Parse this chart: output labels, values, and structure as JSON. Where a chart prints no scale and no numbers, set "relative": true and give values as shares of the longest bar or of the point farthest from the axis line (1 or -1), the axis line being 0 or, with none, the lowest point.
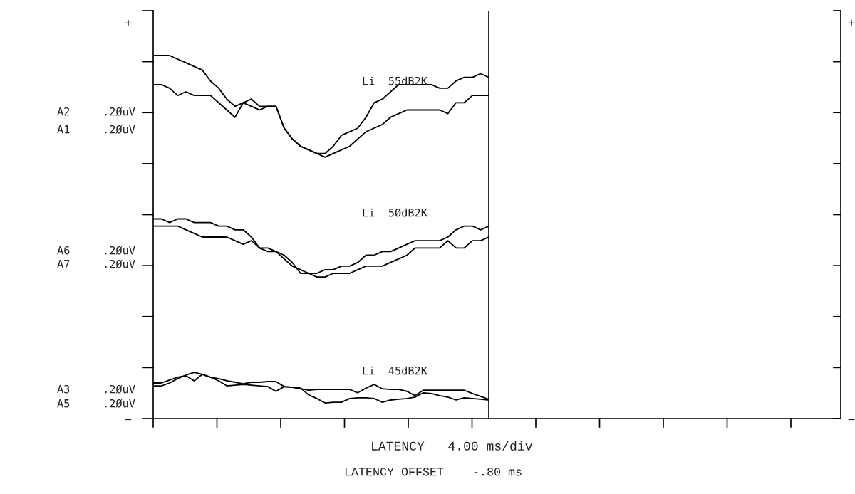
{
  "chart_data": {
    "type": "line",
    "relative": true,
    "legend": false,
    "marker": "none",
    "line_style": "solid",
    "categories": [
      null,
      null,
      null,
      null,
      null,
      null,
      null,
      null,
      null,
      null,
      null,
      null,
      null,
      null,
      null,
      null,
      null,
      null,
      null,
      null,
      null,
      null,
      null,
      null,
      null,
      null,
      null,
      null,
      null,
      null,
      null,
      null,
      null,
      null,
      null,
      null,
      null,
      null,
      null,
      null,
      null,
      null,
      null,
      null,
      null,
      null,
      null,
      null,
      null,
      null,
      null,
      null,
      null,
      null,
      null,
      null,
      null,
      null,
      null,
      null,
      null,
      null,
      null,
      null,
      null,
      null,
      null,
      null,
      null,
      null,
      null,
      null,
      null,
      null,
      null,
      null,
      null,
      null,
      null,
      null,
      null,
      null,
      null,
      null,
      null
    ],
    "series": [
      {
        "color": "#000000",
        "values": [
          1.0,
          1.0,
          1.0,
          0.99,
          0.98,
          0.97,
          0.96,
          0.93,
          0.91,
          0.88,
          0.86,
          0.87,
          0.88,
          0.86,
          0.86,
          0.86,
          0.8,
          0.77,
          0.75,
          0.74,
          0.73,
          0.73,
          0.75,
          0.78,
          0.79,
          0.8,
          0.83,
          0.87,
          0.88,
          0.9,
          0.92,
          0.92,
          0.92,
          0.92,
          0.92,
          0.91,
          0.91,
          0.93,
          0.94,
          0.94,
          0.95,
          0.94,
          null,
          null,
          null,
          null,
          null,
          null,
          null,
          null,
          null,
          null,
          null,
          null,
          null,
          null,
          null,
          null,
          null,
          null,
          null,
          null,
          null,
          null,
          null,
          null,
          null,
          null,
          null,
          null,
          null,
          null,
          null,
          null,
          null,
          null,
          null,
          null,
          null,
          null,
          null,
          null,
          null,
          null,
          null
        ]
      },
      {
        "color": "#000000",
        "values": [
          0.92,
          0.92,
          0.91,
          0.89,
          0.9,
          0.89,
          0.89,
          0.89,
          0.87,
          0.85,
          0.83,
          0.87,
          0.86,
          0.85,
          0.86,
          0.86,
          0.8,
          0.77,
          0.75,
          0.74,
          0.73,
          0.72,
          0.73,
          0.74,
          0.75,
          0.77,
          0.79,
          0.8,
          0.81,
          0.83,
          0.84,
          0.85,
          0.85,
          0.85,
          0.85,
          0.85,
          0.84,
          0.87,
          0.87,
          0.89,
          0.89,
          0.89,
          null,
          null,
          null,
          null,
          null,
          null,
          null,
          null,
          null,
          null,
          null,
          null,
          null,
          null,
          null,
          null,
          null,
          null,
          null,
          null,
          null,
          null,
          null,
          null,
          null,
          null,
          null,
          null,
          null,
          null,
          null,
          null,
          null,
          null,
          null,
          null,
          null,
          null,
          null,
          null,
          null,
          null,
          null
        ]
      },
      {
        "color": "#000000",
        "values": [
          0.55,
          0.55,
          0.54,
          0.55,
          0.55,
          0.54,
          0.54,
          0.54,
          0.53,
          0.53,
          0.52,
          0.52,
          0.5,
          0.47,
          0.46,
          0.46,
          0.44,
          0.42,
          0.41,
          0.4,
          0.4,
          0.41,
          0.41,
          0.42,
          0.42,
          0.43,
          0.45,
          0.45,
          0.46,
          0.46,
          0.47,
          0.48,
          0.49,
          0.49,
          0.49,
          0.49,
          0.5,
          0.52,
          0.53,
          0.53,
          0.52,
          0.53,
          null,
          null,
          null,
          null,
          null,
          null,
          null,
          null,
          null,
          null,
          null,
          null,
          null,
          null,
          null,
          null,
          null,
          null,
          null,
          null,
          null,
          null,
          null,
          null,
          null,
          null,
          null,
          null,
          null,
          null,
          null,
          null,
          null,
          null,
          null,
          null,
          null,
          null,
          null,
          null,
          null,
          null,
          null
        ]
      },
      {
        "color": "#000000",
        "values": [
          0.53,
          0.53,
          0.53,
          0.53,
          0.52,
          0.51,
          0.5,
          0.5,
          0.5,
          0.5,
          0.49,
          0.48,
          0.49,
          0.47,
          0.47,
          0.46,
          0.45,
          0.43,
          0.4,
          0.4,
          0.39,
          0.39,
          0.4,
          0.4,
          0.4,
          0.41,
          0.42,
          0.42,
          0.42,
          0.43,
          0.44,
          0.45,
          0.47,
          0.47,
          0.47,
          0.47,
          0.49,
          0.47,
          0.47,
          0.49,
          0.49,
          0.5,
          null,
          null,
          null,
          null,
          null,
          null,
          null,
          null,
          null,
          null,
          null,
          null,
          null,
          null,
          null,
          null,
          null,
          null,
          null,
          null,
          null,
          null,
          null,
          null,
          null,
          null,
          null,
          null,
          null,
          null,
          null,
          null,
          null,
          null,
          null,
          null,
          null,
          null,
          null,
          null,
          null,
          null,
          null
        ]
      },
      {
        "color": "#000000",
        "values": [
          0.098,
          0.098,
          0.106,
          0.114,
          0.118,
          0.104,
          0.122,
          0.114,
          0.11,
          0.104,
          0.1,
          0.096,
          0.1,
          0.1,
          0.102,
          0.102,
          0.088,
          0.086,
          0.082,
          0.078,
          0.08,
          0.08,
          0.08,
          0.08,
          0.08,
          0.071,
          0.084,
          0.094,
          0.082,
          0.08,
          0.08,
          0.075,
          0.063,
          0.078,
          0.078,
          0.078,
          0.078,
          0.078,
          0.078,
          0.069,
          0.061,
          0.053,
          null,
          null,
          null,
          null,
          null,
          null,
          null,
          null,
          null,
          null,
          null,
          null,
          null,
          null,
          null,
          null,
          null,
          null,
          null,
          null,
          null,
          null,
          null,
          null,
          null,
          null,
          null,
          null,
          null,
          null,
          null,
          null,
          null,
          null,
          null,
          null,
          null,
          null,
          null,
          null,
          null,
          null,
          null
        ]
      },
      {
        "color": "#000000",
        "values": [
          0.09,
          0.09,
          0.098,
          0.11,
          0.12,
          0.127,
          0.122,
          0.114,
          0.104,
          0.09,
          0.092,
          0.094,
          0.092,
          0.09,
          0.088,
          0.075,
          0.088,
          0.086,
          0.084,
          0.065,
          0.055,
          0.043,
          0.045,
          0.045,
          0.055,
          0.057,
          0.057,
          0.055,
          0.045,
          0.051,
          0.053,
          0.055,
          0.059,
          0.071,
          0.069,
          0.063,
          0.059,
          0.051,
          0.057,
          0.055,
          0.053,
          0.051,
          null,
          null,
          null,
          null,
          null,
          null,
          null,
          null,
          null,
          null,
          null,
          null,
          null,
          null,
          null,
          null,
          null,
          null,
          null,
          null,
          null,
          null,
          null,
          null,
          null,
          null,
          null,
          null,
          null,
          null,
          null,
          null,
          null,
          null,
          null,
          null,
          null,
          null,
          null,
          null,
          null,
          null,
          null
        ]
      }
    ],
    "annotations": [
      "A2",
      "A1",
      "A6",
      "A7",
      "A3",
      "A5",
      ".2ØuV",
      ".2ØuV",
      ".2ØuV",
      ".2ØuV",
      ".2ØuV",
      ".2ØuV",
      "Li  55dB2K",
      "Li  5ØdB2K",
      "Li  45dB2K",
      "LATENCY   4.00 ms/div",
      "LATENCY OFFSET    -.80 ms",
      "+",
      "+",
      "−",
      "−"
    ]
  }
}
